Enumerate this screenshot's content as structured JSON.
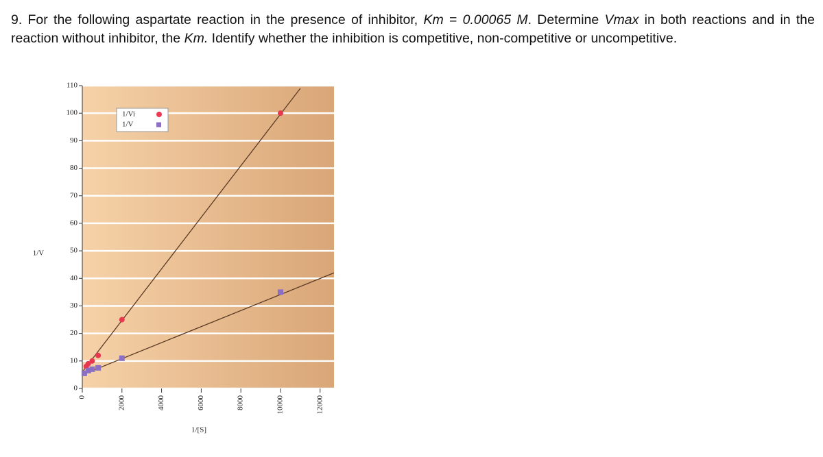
{
  "question": {
    "runs": [
      {
        "text": "9. For the following aspartate reaction in the presence of inhibitor, ",
        "italic": false
      },
      {
        "text": "Km",
        "italic": true
      },
      {
        "text": " = ",
        "italic": false
      },
      {
        "text": "0.00065 M",
        "italic": true
      },
      {
        "text": ". Determine ",
        "italic": false
      },
      {
        "text": "Vmax",
        "italic": true
      },
      {
        "text": " in both reactions and in the reaction without inhibitor, the ",
        "italic": false
      },
      {
        "text": "Km.",
        "italic": true
      },
      {
        "text": " Identify whether the inhibition is competitive, non-competitive or uncompetitive.",
        "italic": false
      }
    ]
  },
  "chart_data": {
    "type": "scatter",
    "xlabel": "1/[S]",
    "ylabel": "1/V",
    "xlim": [
      0,
      12700
    ],
    "ylim": [
      0,
      110
    ],
    "xticks": [
      0,
      2000,
      4000,
      6000,
      8000,
      10000,
      12000
    ],
    "yticks": [
      0,
      10,
      20,
      30,
      40,
      50,
      60,
      70,
      80,
      90,
      100,
      110
    ],
    "grid": true,
    "legend": "upper left",
    "series": [
      {
        "name": "1/Vi",
        "color": "#e8384f",
        "marker": "circle",
        "x": [
          200,
          300,
          500,
          800,
          2000,
          10000
        ],
        "values": [
          8,
          9,
          10,
          12,
          25,
          100
        ],
        "trend": {
          "x": [
            0,
            11000
          ],
          "values": [
            6,
            109
          ]
        }
      },
      {
        "name": "1/V",
        "color": "#8a6fc4",
        "marker": "square",
        "x": [
          100,
          300,
          500,
          800,
          2000,
          10000
        ],
        "values": [
          5.5,
          6.5,
          7,
          7.5,
          11,
          35
        ],
        "trend": {
          "x": [
            0,
            12700
          ],
          "values": [
            5,
            42
          ]
        }
      }
    ]
  }
}
